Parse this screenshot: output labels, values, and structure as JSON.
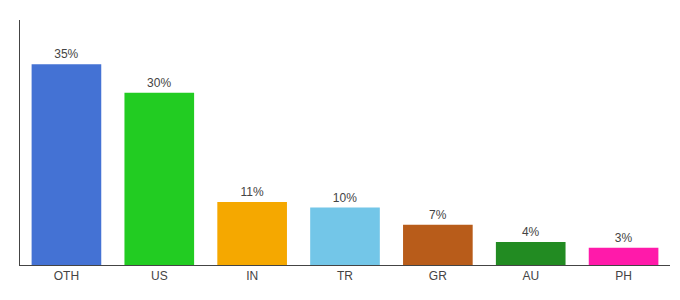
{
  "chart_data": {
    "type": "bar",
    "categories": [
      "OTH",
      "US",
      "IN",
      "TR",
      "GR",
      "AU",
      "PH"
    ],
    "values": [
      35,
      30,
      11,
      10,
      7,
      4,
      3
    ],
    "value_labels": [
      "35%",
      "30%",
      "11%",
      "10%",
      "7%",
      "4%",
      "3%"
    ],
    "data_labels": true,
    "colors": [
      "#4472d4",
      "#22cc22",
      "#f5a800",
      "#73c6e8",
      "#b85c1a",
      "#228b22",
      "#ff1aaa"
    ],
    "ylim": [
      0,
      42.7
    ],
    "tick_labels": "x",
    "grid": false
  }
}
